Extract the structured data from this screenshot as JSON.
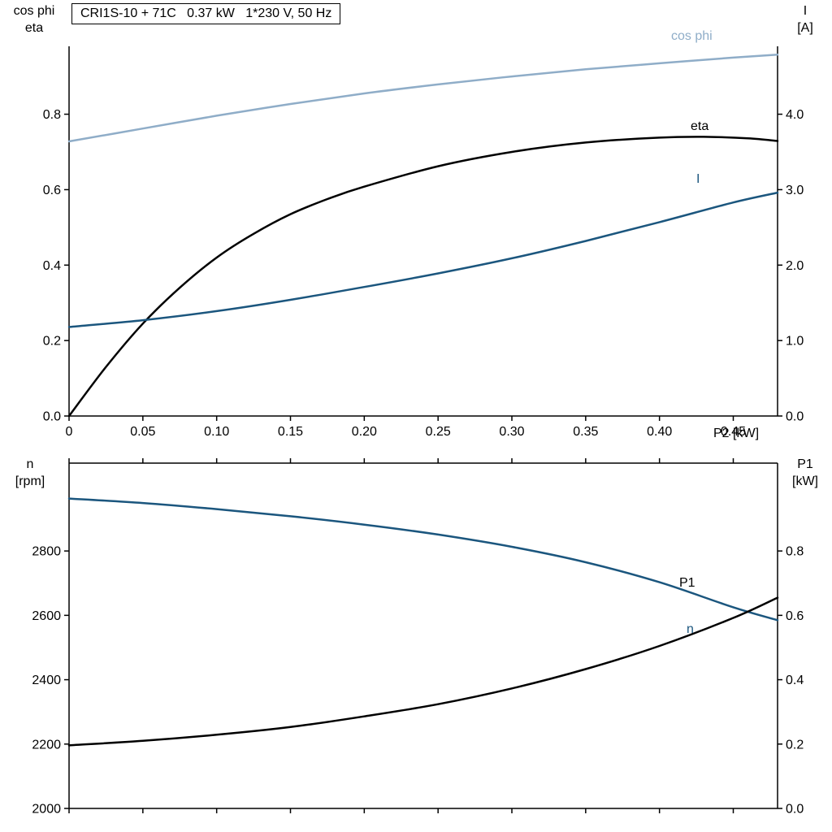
{
  "header": {
    "title": "CRI1S-10 + 71C   0.37 kW   1*230 V, 50 Hz"
  },
  "colors": {
    "cos_phi": "#8fadc8",
    "current": "#1b567e",
    "black": "#000000",
    "axis": "#000000"
  },
  "labels": {
    "top_left_line1": "cos phi",
    "top_left_line2": "eta",
    "top_right_line1": "I",
    "top_right_line2": "[A]",
    "x_axis": "P2 [kW]",
    "bottom_left_line1": "n",
    "bottom_left_line2": "[rpm]",
    "bottom_right_line1": "P1",
    "bottom_right_line2": "[kW]",
    "curve_cos_phi": "cos phi",
    "curve_eta": "eta",
    "curve_I": "I",
    "curve_P1": "P1",
    "curve_n": "n"
  },
  "chart_data": [
    {
      "type": "line",
      "name": "electrical-curves-chart",
      "x": {
        "label": "P2 [kW]",
        "min": 0,
        "max": 0.48,
        "ticks": [
          0,
          0.05,
          0.1,
          0.15,
          0.2,
          0.25,
          0.3,
          0.35,
          0.4,
          0.45
        ],
        "tick_labels": [
          "0",
          "0.05",
          "0.10",
          "0.15",
          "0.20",
          "0.25",
          "0.30",
          "0.35",
          "0.40",
          "0.45"
        ]
      },
      "left_axis": {
        "label": "cos phi / eta",
        "min": 0,
        "max": 0.98,
        "ticks": [
          0,
          0.2,
          0.4,
          0.6,
          0.8
        ],
        "tick_labels": [
          "0.0",
          "0.2",
          "0.4",
          "0.6",
          "0.8"
        ]
      },
      "right_axis": {
        "label": "I [A]",
        "min": 0,
        "max": 4.9,
        "ticks": [
          0,
          1,
          2,
          3,
          4
        ],
        "tick_labels": [
          "0.0",
          "1.0",
          "2.0",
          "3.0",
          "4.0"
        ]
      },
      "frame": [
        "left",
        "right",
        "bottom"
      ],
      "grid": false,
      "series": [
        {
          "name": "cos phi",
          "axis": "left",
          "color_key": "cos_phi",
          "x": [
            0,
            0.05,
            0.1,
            0.15,
            0.2,
            0.25,
            0.3,
            0.35,
            0.4,
            0.45,
            0.48
          ],
          "y": [
            0.728,
            0.762,
            0.796,
            0.827,
            0.855,
            0.879,
            0.9,
            0.919,
            0.935,
            0.95,
            0.958
          ]
        },
        {
          "name": "eta",
          "axis": "left",
          "color_key": "black",
          "x": [
            0,
            0.025,
            0.05,
            0.075,
            0.1,
            0.125,
            0.15,
            0.175,
            0.2,
            0.25,
            0.3,
            0.35,
            0.4,
            0.43,
            0.46,
            0.48
          ],
          "y": [
            0.0,
            0.13,
            0.245,
            0.34,
            0.42,
            0.483,
            0.535,
            0.575,
            0.608,
            0.662,
            0.7,
            0.725,
            0.738,
            0.74,
            0.736,
            0.729
          ]
        },
        {
          "name": "I",
          "axis": "right",
          "color_key": "current",
          "x": [
            0,
            0.05,
            0.1,
            0.15,
            0.2,
            0.25,
            0.3,
            0.35,
            0.4,
            0.45,
            0.48
          ],
          "y": [
            1.18,
            1.27,
            1.39,
            1.54,
            1.71,
            1.89,
            2.09,
            2.32,
            2.57,
            2.83,
            2.96
          ]
        }
      ]
    },
    {
      "type": "line",
      "name": "speed-power-curves-chart",
      "x": {
        "label": "",
        "min": 0,
        "max": 0.48,
        "ticks": [
          0,
          0.05,
          0.1,
          0.15,
          0.2,
          0.25,
          0.3,
          0.35,
          0.4,
          0.45
        ],
        "tick_labels": []
      },
      "left_axis": {
        "label": "n [rpm]",
        "min": 2000,
        "max": 3073,
        "ticks": [
          2000,
          2200,
          2400,
          2600,
          2800
        ],
        "tick_labels": [
          "2000",
          "2200",
          "2400",
          "2600",
          "2800"
        ]
      },
      "right_axis": {
        "label": "P1 [kW]",
        "min": 0,
        "max": 1.073,
        "ticks": [
          0,
          0.2,
          0.4,
          0.6,
          0.8
        ],
        "tick_labels": [
          "0.0",
          "0.2",
          "0.4",
          "0.6",
          "0.8"
        ]
      },
      "frame": [
        "left",
        "right",
        "top",
        "bottom"
      ],
      "grid": false,
      "series": [
        {
          "name": "n",
          "axis": "left",
          "color_key": "current",
          "x": [
            0,
            0.05,
            0.1,
            0.15,
            0.2,
            0.25,
            0.3,
            0.35,
            0.4,
            0.45,
            0.48
          ],
          "y": [
            2963,
            2949,
            2930,
            2908,
            2882,
            2851,
            2813,
            2765,
            2703,
            2625,
            2585
          ]
        },
        {
          "name": "P1",
          "axis": "right",
          "color_key": "black",
          "x": [
            0,
            0.05,
            0.1,
            0.15,
            0.2,
            0.25,
            0.3,
            0.35,
            0.4,
            0.45,
            0.48
          ],
          "y": [
            0.196,
            0.21,
            0.229,
            0.253,
            0.286,
            0.324,
            0.373,
            0.433,
            0.505,
            0.592,
            0.655
          ]
        }
      ]
    }
  ]
}
